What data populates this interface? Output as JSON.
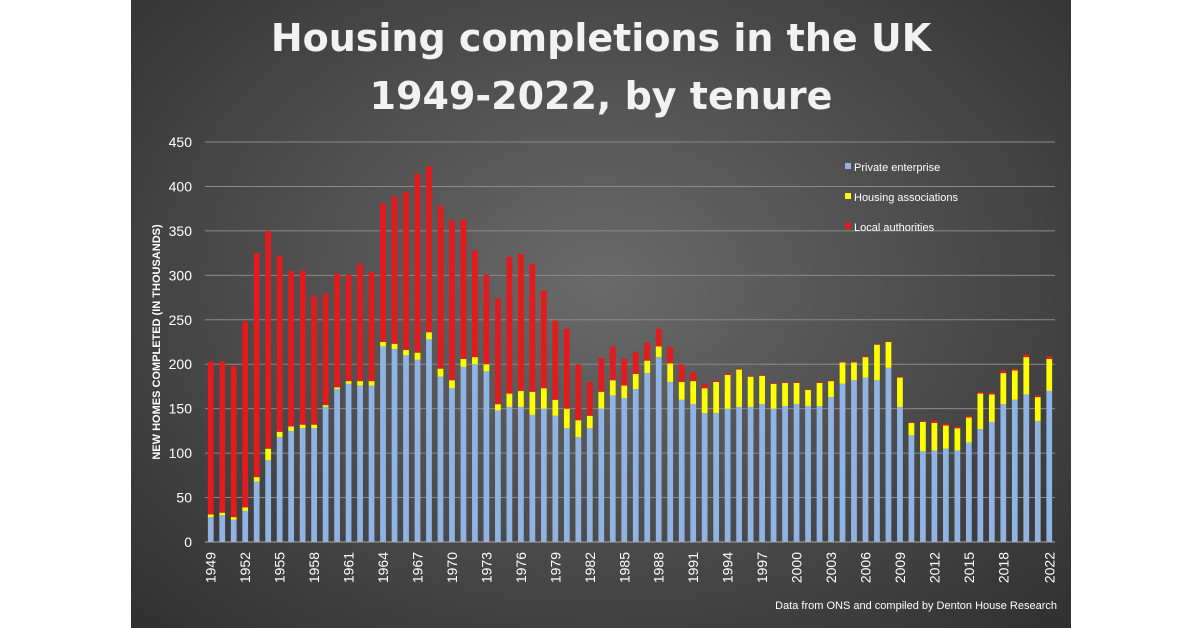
{
  "title_line1": "Housing completions in the UK",
  "title_line2": "1949-2022, by tenure",
  "source": "Data from ONS and compiled by Denton House Research",
  "chart_data": {
    "type": "bar",
    "stacked": true,
    "ylabel": "NEW HOMES COMPLETED (IN THOUSANDS)",
    "xlabel": "",
    "ylim": [
      0,
      450
    ],
    "yticks": [
      0,
      50,
      100,
      150,
      200,
      250,
      300,
      350,
      400,
      450
    ],
    "grid": true,
    "legend_position": "top-right",
    "categories": [
      1949,
      1950,
      1951,
      1952,
      1953,
      1954,
      1955,
      1956,
      1957,
      1958,
      1959,
      1960,
      1961,
      1962,
      1963,
      1964,
      1965,
      1966,
      1967,
      1968,
      1969,
      1970,
      1971,
      1972,
      1973,
      1974,
      1975,
      1976,
      1977,
      1978,
      1979,
      1980,
      1981,
      1982,
      1983,
      1984,
      1985,
      1986,
      1987,
      1988,
      1989,
      1990,
      1991,
      1992,
      1993,
      1994,
      1995,
      1996,
      1997,
      1998,
      1999,
      2000,
      2001,
      2002,
      2003,
      2004,
      2005,
      2006,
      2007,
      2008,
      2009,
      2010,
      2011,
      2012,
      2013,
      2014,
      2015,
      2016,
      2017,
      2018,
      2019,
      2020,
      2021,
      2022
    ],
    "xtick_labels": [
      "1949",
      "1952",
      "1955",
      "1958",
      "1961",
      "1964",
      "1967",
      "1970",
      "1973",
      "1976",
      "1979",
      "1982",
      "1985",
      "1988",
      "1991",
      "1994",
      "1997",
      "2000",
      "2003",
      "2006",
      "2009",
      "2012",
      "2015",
      "2018",
      "2022"
    ],
    "series": [
      {
        "name": "Private enterprise",
        "color": "#8fb4e3",
        "values": [
          28,
          30,
          25,
          35,
          68,
          92,
          118,
          125,
          128,
          128,
          152,
          172,
          178,
          176,
          176,
          220,
          217,
          210,
          205,
          228,
          186,
          173,
          197,
          200,
          192,
          148,
          152,
          152,
          143,
          150,
          142,
          128,
          118,
          128,
          150,
          165,
          162,
          172,
          190,
          208,
          180,
          160,
          155,
          145,
          145,
          150,
          152,
          152,
          155,
          150,
          153,
          155,
          153,
          153,
          163,
          178,
          182,
          185,
          182,
          196,
          152,
          120,
          102,
          103,
          105,
          103,
          112,
          127,
          135,
          155,
          160,
          166,
          136,
          170
        ]
      },
      {
        "name": "Housing associations",
        "color": "#ffff00",
        "values": [
          3,
          3,
          3,
          4,
          5,
          13,
          6,
          5,
          4,
          4,
          2,
          2,
          3,
          5,
          5,
          5,
          6,
          6,
          8,
          8,
          9,
          9,
          9,
          8,
          8,
          7,
          15,
          18,
          26,
          23,
          18,
          22,
          19,
          14,
          19,
          17,
          14,
          17,
          14,
          12,
          21,
          20,
          26,
          28,
          35,
          38,
          42,
          34,
          32,
          28,
          26,
          24,
          18,
          26,
          18,
          24,
          20,
          23,
          40,
          29,
          33,
          14,
          33,
          31,
          26,
          25,
          28,
          40,
          31,
          35,
          33,
          42,
          27,
          36
        ]
      },
      {
        "name": "Local authorities",
        "color": "#e41a1c",
        "values": [
          172,
          170,
          170,
          209,
          252,
          245,
          198,
          175,
          173,
          145,
          125,
          128,
          120,
          132,
          123,
          156,
          166,
          178,
          201,
          187,
          183,
          180,
          157,
          120,
          101,
          119,
          154,
          154,
          144,
          110,
          89,
          90,
          63,
          38,
          38,
          38,
          30,
          25,
          20,
          20,
          18,
          20,
          10,
          5,
          2,
          2,
          1,
          1,
          1,
          1,
          1,
          1,
          1,
          1,
          1,
          1,
          1,
          1,
          1,
          1,
          1,
          1,
          1,
          3,
          2,
          2,
          2,
          2,
          2,
          3,
          2,
          3,
          2,
          3
        ]
      }
    ]
  }
}
